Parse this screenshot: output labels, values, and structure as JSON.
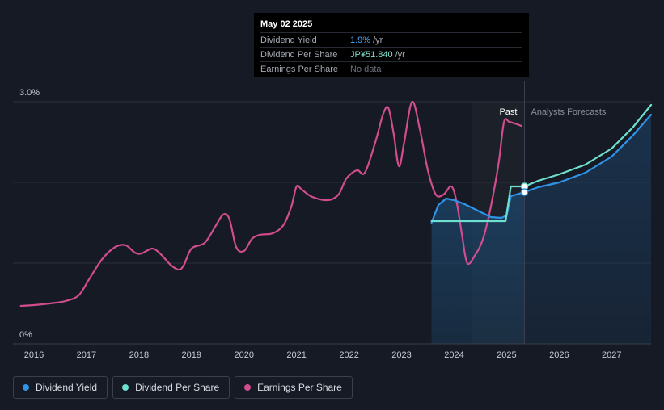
{
  "tooltip": {
    "date": "May 02 2025",
    "rows": [
      {
        "label": "Dividend Yield",
        "value": "1.9%",
        "unit": "/yr"
      },
      {
        "label": "Dividend Per Share",
        "value": "JP¥51.840",
        "unit": "/yr"
      },
      {
        "label": "Earnings Per Share",
        "value": "No data",
        "unit": ""
      }
    ]
  },
  "legend": [
    {
      "label": "Dividend Yield",
      "color": "#2f94e8"
    },
    {
      "label": "Dividend Per Share",
      "color": "#6ee0cf"
    },
    {
      "label": "Earnings Per Share",
      "color": "#d14d8d"
    }
  ],
  "chart_data": {
    "type": "line",
    "ylabels": {
      "top": "3.0%",
      "bottom": "0%"
    },
    "ylim": [
      0,
      3.0
    ],
    "xlim": [
      2015.6,
      2027.75
    ],
    "x_ticks": [
      "2016",
      "2017",
      "2018",
      "2019",
      "2020",
      "2021",
      "2022",
      "2023",
      "2024",
      "2025",
      "2026",
      "2027"
    ],
    "regions": {
      "past_label": "Past",
      "forecast_label": "Analysts Forecasts",
      "past_divider_x": 2025.34,
      "highlight_start_x": 2024.33,
      "forecast_end_x": 2027.75
    },
    "colors": {
      "yield": "#2f94e8",
      "dps": "#6ee0cf",
      "eps": "#d14d8d",
      "grid": "#2c313c",
      "axis_text": "#c8ccd4"
    },
    "series": [
      {
        "name": "Earnings Per Share",
        "x": [
          2015.75,
          2016.0,
          2016.3,
          2016.6,
          2016.85,
          2017.05,
          2017.3,
          2017.55,
          2017.75,
          2017.92,
          2018.05,
          2018.25,
          2018.4,
          2018.6,
          2018.75,
          2018.85,
          2019.0,
          2019.25,
          2019.45,
          2019.6,
          2019.72,
          2019.85,
          2020.0,
          2020.15,
          2020.3,
          2020.55,
          2020.75,
          2020.9,
          2021.0,
          2021.1,
          2021.3,
          2021.6,
          2021.8,
          2021.95,
          2022.15,
          2022.3,
          2022.5,
          2022.65,
          2022.75,
          2022.85,
          2022.95,
          2023.05,
          2023.2,
          2023.35,
          2023.5,
          2023.65,
          2023.8,
          2023.95,
          2024.05,
          2024.15,
          2024.25,
          2024.4,
          2024.55,
          2024.7,
          2024.85,
          2024.95,
          2025.05,
          2025.2,
          2025.28
        ],
        "values": [
          0.47,
          0.48,
          0.5,
          0.53,
          0.6,
          0.8,
          1.05,
          1.2,
          1.22,
          1.13,
          1.12,
          1.18,
          1.12,
          0.98,
          0.92,
          0.97,
          1.18,
          1.25,
          1.45,
          1.6,
          1.55,
          1.2,
          1.15,
          1.3,
          1.35,
          1.37,
          1.47,
          1.7,
          1.95,
          1.91,
          1.82,
          1.78,
          1.85,
          2.05,
          2.15,
          2.12,
          2.5,
          2.85,
          2.92,
          2.6,
          2.2,
          2.5,
          3.0,
          2.65,
          2.15,
          1.85,
          1.85,
          1.95,
          1.75,
          1.35,
          1.0,
          1.1,
          1.3,
          1.7,
          2.25,
          2.75,
          2.75,
          2.72,
          2.7
        ]
      },
      {
        "name": "Dividend Yield",
        "x": [
          2023.57,
          2023.7,
          2023.85,
          2024.0,
          2024.2,
          2024.45,
          2024.7,
          2024.9,
          2025.0,
          2025.08,
          2025.34,
          2025.6,
          2026.0,
          2026.5,
          2027.0,
          2027.4,
          2027.75
        ],
        "values": [
          1.5,
          1.72,
          1.8,
          1.78,
          1.73,
          1.65,
          1.57,
          1.56,
          1.59,
          1.83,
          1.88,
          1.94,
          2.0,
          2.12,
          2.32,
          2.58,
          2.84
        ]
      },
      {
        "name": "Dividend Per Share",
        "x": [
          2023.57,
          2024.0,
          2024.5,
          2024.98,
          2025.08,
          2025.34,
          2025.6,
          2026.0,
          2026.5,
          2027.0,
          2027.4,
          2027.75
        ],
        "values": [
          1.52,
          1.52,
          1.52,
          1.52,
          1.95,
          1.95,
          2.02,
          2.1,
          2.22,
          2.42,
          2.68,
          2.96
        ]
      }
    ]
  }
}
